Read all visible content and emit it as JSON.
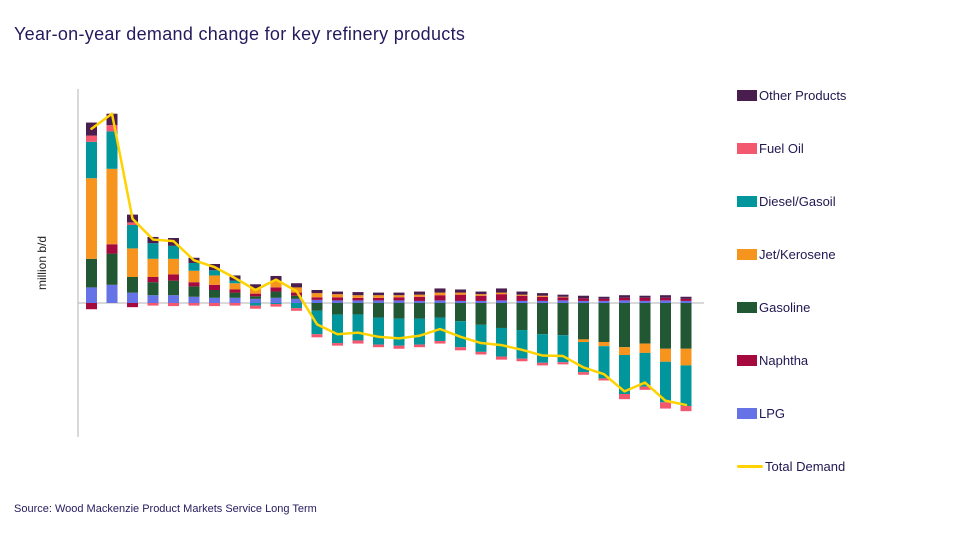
{
  "header": {
    "title": "Year-on-year demand change for key refinery products"
  },
  "footer": {
    "source": "Source: Wood Mackenzie Product Markets Service Long Term"
  },
  "chart_data": {
    "type": "bar",
    "stacked": true,
    "overlay_line": true,
    "title": "Year-on-year demand change for key refinery products",
    "xlabel": "",
    "ylabel": "million b/d",
    "ylim": [
      -2.2,
      4.0
    ],
    "grid": false,
    "legend_position": "right",
    "x": [
      1,
      2,
      3,
      4,
      5,
      6,
      7,
      8,
      9,
      10,
      11,
      12,
      13,
      14,
      15,
      16,
      17,
      18,
      19,
      20,
      21,
      22,
      23,
      24,
      25,
      26,
      27,
      28,
      29,
      30
    ],
    "series": [
      {
        "name": "LPG",
        "color": "#6673e6",
        "values": [
          0.3,
          0.35,
          0.2,
          0.15,
          0.15,
          0.12,
          0.1,
          0.1,
          0.08,
          0.1,
          0.08,
          0.06,
          0.05,
          0.05,
          0.05,
          0.05,
          0.04,
          0.05,
          0.04,
          0.04,
          0.05,
          0.04,
          0.04,
          0.05,
          0.04,
          0.04,
          0.05,
          0.04,
          0.05,
          0.04
        ]
      },
      {
        "name": "Gasoline",
        "color": "#215732",
        "values": [
          0.55,
          0.6,
          0.3,
          0.25,
          0.28,
          0.2,
          0.15,
          0.1,
          0.05,
          0.12,
          0.06,
          -0.15,
          -0.22,
          -0.22,
          -0.28,
          -0.3,
          -0.3,
          -0.28,
          -0.35,
          -0.42,
          -0.48,
          -0.52,
          -0.6,
          -0.62,
          -0.7,
          -0.75,
          -0.85,
          -0.78,
          -0.88,
          -0.88
        ]
      },
      {
        "name": "Naphtha",
        "color": "#a6093d",
        "values": [
          -0.12,
          0.18,
          -0.08,
          0.1,
          0.12,
          0.08,
          0.1,
          0.06,
          0.05,
          0.08,
          0.06,
          0.05,
          0.06,
          0.05,
          0.05,
          0.06,
          0.08,
          0.1,
          0.12,
          0.1,
          0.12,
          0.1,
          0.08,
          0.06,
          0.05,
          0.04,
          0.05,
          0.06,
          0.05,
          0.04
        ]
      },
      {
        "name": "Jet/Kerosene",
        "color": "#f7941d",
        "values": [
          1.55,
          1.45,
          0.55,
          0.35,
          0.3,
          0.22,
          0.18,
          0.12,
          0.1,
          0.12,
          0.1,
          0.08,
          0.06,
          0.05,
          0.05,
          0.04,
          0.04,
          0.05,
          0.04,
          0.03,
          0.03,
          0.02,
          0.02,
          0.01,
          -0.05,
          -0.08,
          -0.15,
          -0.18,
          -0.25,
          -0.32
        ]
      },
      {
        "name": "Diesel/Gasoil",
        "color": "#00969b",
        "values": [
          0.7,
          0.72,
          0.45,
          0.3,
          0.25,
          0.15,
          0.1,
          0.05,
          -0.05,
          -0.02,
          -0.1,
          -0.45,
          -0.55,
          -0.5,
          -0.52,
          -0.52,
          -0.5,
          -0.45,
          -0.5,
          -0.52,
          -0.55,
          -0.55,
          -0.55,
          -0.52,
          -0.58,
          -0.62,
          -0.75,
          -0.65,
          -0.78,
          -0.78
        ]
      },
      {
        "name": "Fuel Oil",
        "color": "#f4586f",
        "values": [
          0.12,
          0.12,
          0.05,
          -0.05,
          -0.06,
          -0.05,
          -0.06,
          -0.05,
          -0.06,
          -0.05,
          -0.05,
          -0.06,
          -0.05,
          -0.06,
          -0.05,
          -0.06,
          -0.05,
          -0.05,
          -0.06,
          -0.05,
          -0.06,
          -0.05,
          -0.05,
          -0.04,
          -0.05,
          -0.04,
          -0.1,
          -0.06,
          -0.12,
          -0.1
        ]
      },
      {
        "name": "Other Products",
        "color": "#4a1d4f",
        "values": [
          0.25,
          0.22,
          0.15,
          0.12,
          0.15,
          0.1,
          0.12,
          0.1,
          0.08,
          0.1,
          0.08,
          0.06,
          0.05,
          0.06,
          0.05,
          0.05,
          0.06,
          0.08,
          0.06,
          0.05,
          0.08,
          0.06,
          0.05,
          0.04,
          0.05,
          0.04,
          0.05,
          0.04,
          0.05,
          0.04
        ]
      }
    ],
    "line_series": {
      "name": "Total Demand",
      "color": "#ffd200",
      "values": [
        3.35,
        3.64,
        1.62,
        1.22,
        1.19,
        0.82,
        0.69,
        0.48,
        0.25,
        0.45,
        0.23,
        -0.41,
        -0.6,
        -0.57,
        -0.65,
        -0.68,
        -0.63,
        -0.5,
        -0.65,
        -0.77,
        -0.81,
        -0.9,
        -1.01,
        -1.02,
        -1.24,
        -1.37,
        -1.7,
        -1.53,
        -1.88,
        -1.96
      ]
    },
    "legend": [
      {
        "label": "Other Products",
        "color": "#4a1d4f",
        "type": "box"
      },
      {
        "label": "Fuel Oil",
        "color": "#f4586f",
        "type": "box"
      },
      {
        "label": "Diesel/Gasoil",
        "color": "#00969b",
        "type": "box"
      },
      {
        "label": "Jet/Kerosene",
        "color": "#f7941d",
        "type": "box"
      },
      {
        "label": "Gasoline",
        "color": "#215732",
        "type": "box"
      },
      {
        "label": "Naphtha",
        "color": "#a6093d",
        "type": "box"
      },
      {
        "label": "LPG",
        "color": "#6673e6",
        "type": "box"
      },
      {
        "label": "Total Demand",
        "color": "#ffd200",
        "type": "line"
      }
    ],
    "axis_color": "#b3b3b3"
  }
}
